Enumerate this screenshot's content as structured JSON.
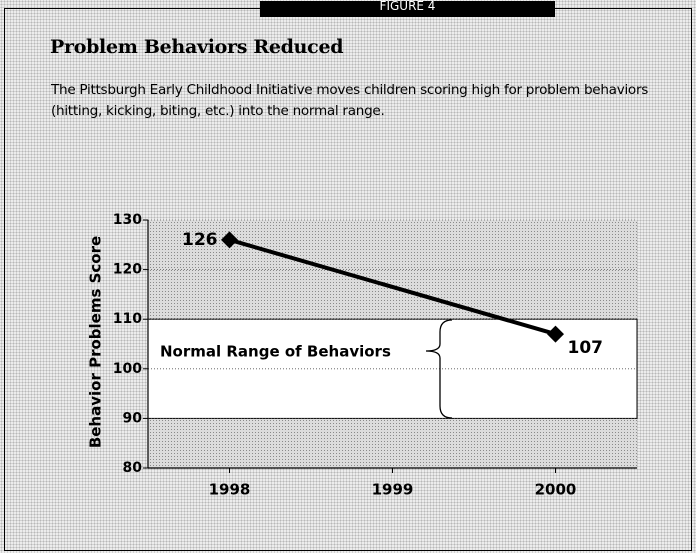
{
  "chart_data": {
    "type": "line",
    "figure_label": "FIGURE 4",
    "title": "Problem Behaviors Reduced",
    "subtitle": "The Pittsburgh Early Childhood Initiative moves children scoring high for problem behaviors (hitting, kicking, biting, etc.) into the normal range.",
    "y_label": "Behavior Problems Score",
    "annotation": "Normal Range of Behaviors",
    "normal_range": [
      90,
      110
    ],
    "x": [
      1998,
      2000
    ],
    "series": [
      {
        "name": "Behavior Problems Score",
        "color": "#000000",
        "values": [
          126,
          107
        ]
      }
    ],
    "xlim": [
      1997.5,
      2000.5
    ],
    "xticks": [
      1998,
      1999,
      2000
    ],
    "ylim": [
      80,
      130
    ],
    "yticks": [
      80,
      90,
      100,
      110,
      120,
      130
    ],
    "grid": true
  }
}
